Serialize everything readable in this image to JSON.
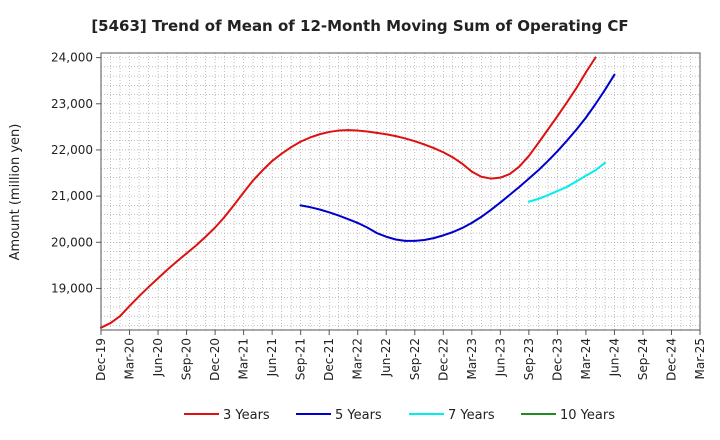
{
  "chart_data": {
    "type": "line",
    "title": "[5463]  Trend of Mean of 12-Month Moving Sum of Operating CF",
    "xlabel": "",
    "ylabel": "Amount (million yen)",
    "ylim": [
      18100,
      24100
    ],
    "xlim": [
      "Dec-19",
      "Mar-25"
    ],
    "grid": true,
    "legend_position": "bottom",
    "y_ticks": [
      19000,
      20000,
      21000,
      22000,
      23000,
      24000
    ],
    "y_tick_labels": [
      "19,000",
      "20,000",
      "21,000",
      "22,000",
      "23,000",
      "24,000"
    ],
    "x_tick_labels": [
      "Dec-19",
      "Mar-20",
      "Jun-20",
      "Sep-20",
      "Dec-20",
      "Mar-21",
      "Jun-21",
      "Sep-21",
      "Dec-21",
      "Mar-22",
      "Jun-22",
      "Sep-22",
      "Dec-22",
      "Mar-23",
      "Jun-23",
      "Sep-23",
      "Dec-23",
      "Mar-24",
      "Jun-24",
      "Sep-24",
      "Dec-24",
      "Mar-25"
    ],
    "series": [
      {
        "name": "3 Years",
        "color": "#dd1111",
        "start_month_index": 0,
        "values": [
          18150,
          18250,
          18400,
          18620,
          18830,
          19030,
          19220,
          19410,
          19590,
          19760,
          19930,
          20120,
          20320,
          20550,
          20810,
          21080,
          21340,
          21560,
          21760,
          21920,
          22060,
          22180,
          22270,
          22340,
          22390,
          22420,
          22430,
          22420,
          22400,
          22370,
          22340,
          22300,
          22250,
          22190,
          22120,
          22040,
          21950,
          21840,
          21700,
          21530,
          21420,
          21380,
          21400,
          21480,
          21640,
          21870,
          22150,
          22440,
          22730,
          23030,
          23340,
          23680,
          24000
        ]
      },
      {
        "name": "5 Years",
        "color": "#0000cc",
        "start_month_index": 21,
        "values": [
          20800,
          20760,
          20710,
          20650,
          20580,
          20500,
          20420,
          20320,
          20200,
          20120,
          20060,
          20030,
          20030,
          20050,
          20090,
          20150,
          20220,
          20310,
          20420,
          20550,
          20700,
          20860,
          21030,
          21200,
          21380,
          21560,
          21760,
          21970,
          22200,
          22440,
          22700,
          22990,
          23300,
          23630
        ]
      },
      {
        "name": "7 Years",
        "color": "#00eeee",
        "start_month_index": 45,
        "values": [
          20880,
          20940,
          21020,
          21110,
          21200,
          21320,
          21440,
          21560,
          21720
        ]
      },
      {
        "name": "10 Years",
        "color": "#228b22",
        "start_month_index": 0,
        "values": []
      }
    ]
  }
}
